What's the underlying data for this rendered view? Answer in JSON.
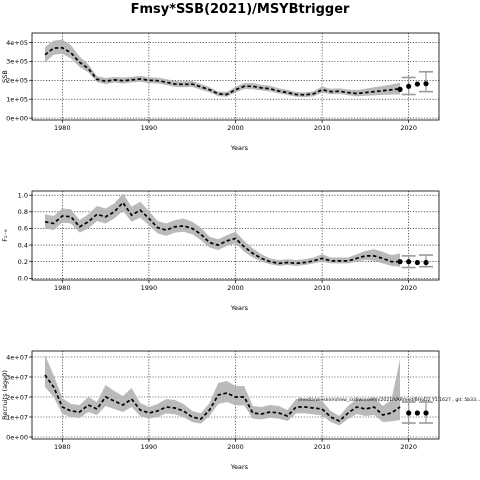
{
  "figure_title": "Fmsy*SSB(2021)/MSYBtrigger",
  "chart_data": [
    {
      "type": "line",
      "title": "",
      "xlabel": "Years",
      "ylabel": "SSB",
      "xlim": [
        1976.5,
        2023.5
      ],
      "ylim": [
        -10000,
        450000
      ],
      "xticks": [
        1980,
        1990,
        2000,
        2010,
        2020
      ],
      "xtick_labels": [
        "1980",
        "1990",
        "2000",
        "2010",
        "2020"
      ],
      "yticks": [
        0,
        100000,
        200000,
        300000,
        400000
      ],
      "ytick_labels": [
        "0e+00",
        "1e+05",
        "2e+05",
        "3e+05",
        "4e+05"
      ],
      "grid": true,
      "series": [
        {
          "x": [
            1978,
            1979,
            1980,
            1981,
            1982,
            1983,
            1984,
            1985,
            1986,
            1987,
            1988,
            1989,
            1990,
            1991,
            1992,
            1993,
            1994,
            1995,
            1996,
            1997,
            1998,
            1999,
            2000,
            2001,
            2002,
            2003,
            2004,
            2005,
            2006,
            2007,
            2008,
            2009,
            2010,
            2011,
            2012,
            2013,
            2014,
            2015,
            2016,
            2017,
            2018,
            2019
          ],
          "y": [
            335000,
            370000,
            372000,
            345000,
            295000,
            262000,
            205000,
            195000,
            202000,
            198000,
            202000,
            207000,
            200000,
            198000,
            190000,
            180000,
            178000,
            180000,
            165000,
            150000,
            128000,
            125000,
            150000,
            168000,
            168000,
            160000,
            155000,
            143000,
            135000,
            125000,
            123000,
            128000,
            150000,
            140000,
            142000,
            135000,
            130000,
            135000,
            140000,
            145000,
            150000,
            155000
          ],
          "lower": [
            295000,
            335000,
            340000,
            315000,
            270000,
            242000,
            190000,
            180000,
            188000,
            183000,
            188000,
            192000,
            185000,
            183000,
            175000,
            165000,
            163000,
            165000,
            150000,
            137000,
            116000,
            113000,
            136000,
            153000,
            153000,
            146000,
            141000,
            130000,
            122000,
            113000,
            111000,
            115000,
            135000,
            126000,
            128000,
            121000,
            115000,
            118000,
            120000,
            122000,
            124000,
            125000
          ],
          "upper": [
            375000,
            410000,
            415000,
            385000,
            325000,
            285000,
            222000,
            212000,
            218000,
            215000,
            218000,
            223000,
            216000,
            214000,
            206000,
            196000,
            194000,
            196000,
            180000,
            164000,
            141000,
            138000,
            166000,
            185000,
            185000,
            176000,
            171000,
            158000,
            149000,
            138000,
            136000,
            142000,
            167000,
            155000,
            158000,
            151000,
            148000,
            155000,
            163000,
            170000,
            178000,
            187000
          ]
        }
      ],
      "projection_points": [
        {
          "x": 2019,
          "y": 152000
        },
        {
          "x": 2020,
          "y": 168000
        },
        {
          "x": 2021,
          "y": 180000
        },
        {
          "x": 2022,
          "y": 182000
        }
      ],
      "projection_intervals": [
        {
          "x": 2020,
          "low": 125000,
          "high": 215000
        },
        {
          "x": 2022,
          "low": 140000,
          "high": 245000
        }
      ]
    },
    {
      "type": "line",
      "title": "",
      "xlabel": "Years",
      "ylabel": "F₂₋₆",
      "xlim": [
        1976.5,
        2023.5
      ],
      "ylim": [
        -0.02,
        1.05
      ],
      "xticks": [
        1980,
        1990,
        2000,
        2010,
        2020
      ],
      "xtick_labels": [
        "1980",
        "1990",
        "2000",
        "2010",
        "2020"
      ],
      "yticks": [
        0.0,
        0.2,
        0.4,
        0.6,
        0.8,
        1.0
      ],
      "ytick_labels": [
        "0.0",
        "0.2",
        "0.4",
        "0.6",
        "0.8",
        "1.0"
      ],
      "grid": true,
      "series": [
        {
          "x": [
            1978,
            1979,
            1980,
            1981,
            1982,
            1983,
            1984,
            1985,
            1986,
            1987,
            1988,
            1989,
            1990,
            1991,
            1992,
            1993,
            1994,
            1995,
            1996,
            1997,
            1998,
            1999,
            2000,
            2001,
            2002,
            2003,
            2004,
            2005,
            2006,
            2007,
            2008,
            2009,
            2010,
            2011,
            2012,
            2013,
            2014,
            2015,
            2016,
            2017,
            2018,
            2019
          ],
          "y": [
            0.68,
            0.66,
            0.75,
            0.74,
            0.62,
            0.68,
            0.77,
            0.74,
            0.8,
            0.91,
            0.76,
            0.82,
            0.72,
            0.61,
            0.58,
            0.62,
            0.63,
            0.6,
            0.53,
            0.43,
            0.4,
            0.45,
            0.48,
            0.38,
            0.3,
            0.24,
            0.2,
            0.18,
            0.19,
            0.18,
            0.19,
            0.21,
            0.24,
            0.21,
            0.21,
            0.21,
            0.24,
            0.27,
            0.27,
            0.24,
            0.2,
            0.2
          ],
          "lower": [
            0.6,
            0.58,
            0.67,
            0.66,
            0.55,
            0.6,
            0.69,
            0.66,
            0.72,
            0.81,
            0.68,
            0.73,
            0.64,
            0.54,
            0.51,
            0.55,
            0.56,
            0.53,
            0.46,
            0.37,
            0.34,
            0.39,
            0.42,
            0.32,
            0.25,
            0.2,
            0.17,
            0.15,
            0.16,
            0.15,
            0.16,
            0.18,
            0.2,
            0.18,
            0.18,
            0.18,
            0.2,
            0.22,
            0.21,
            0.18,
            0.15,
            0.14
          ],
          "upper": [
            0.77,
            0.75,
            0.84,
            0.83,
            0.7,
            0.77,
            0.87,
            0.84,
            0.9,
            1.02,
            0.86,
            0.92,
            0.81,
            0.69,
            0.66,
            0.7,
            0.72,
            0.68,
            0.61,
            0.5,
            0.47,
            0.52,
            0.56,
            0.45,
            0.36,
            0.29,
            0.24,
            0.22,
            0.23,
            0.22,
            0.23,
            0.25,
            0.29,
            0.25,
            0.25,
            0.25,
            0.29,
            0.33,
            0.35,
            0.32,
            0.28,
            0.3
          ]
        }
      ],
      "projection_points": [
        {
          "x": 2019,
          "y": 0.2
        },
        {
          "x": 2020,
          "y": 0.2
        },
        {
          "x": 2021,
          "y": 0.19
        },
        {
          "x": 2022,
          "y": 0.19
        }
      ],
      "projection_intervals": [
        {
          "x": 2020,
          "low": 0.13,
          "high": 0.27
        },
        {
          "x": 2022,
          "low": 0.14,
          "high": 0.28
        }
      ]
    },
    {
      "type": "line",
      "title": "",
      "xlabel": "Years",
      "ylabel": "Recruits (age0)",
      "xlim": [
        1976.5,
        2023.5
      ],
      "ylim": [
        -1000000,
        43000000
      ],
      "xticks": [
        1980,
        1990,
        2000,
        2010,
        2020
      ],
      "xtick_labels": [
        "1980",
        "1990",
        "2000",
        "2010",
        "2020"
      ],
      "yticks": [
        0,
        10000000,
        20000000,
        30000000,
        40000000
      ],
      "ytick_labels": [
        "0e+00",
        "1e+07",
        "2e+07",
        "3e+07",
        "4e+07"
      ],
      "grid": true,
      "series": [
        {
          "x": [
            1978,
            1979,
            1980,
            1981,
            1982,
            1983,
            1984,
            1985,
            1986,
            1987,
            1988,
            1989,
            1990,
            1991,
            1992,
            1993,
            1994,
            1995,
            1996,
            1997,
            1998,
            1999,
            2000,
            2001,
            2002,
            2003,
            2004,
            2005,
            2006,
            2007,
            2008,
            2009,
            2010,
            2011,
            2012,
            2013,
            2014,
            2015,
            2016,
            2017,
            2018,
            2019
          ],
          "y": [
            31000000,
            25000000,
            15000000,
            13000000,
            12500000,
            16000000,
            14000000,
            20000000,
            18000000,
            16000000,
            19000000,
            13500000,
            12000000,
            13000000,
            15000000,
            14500000,
            13000000,
            10000000,
            9000000,
            13500000,
            21000000,
            22000000,
            20000000,
            20000000,
            12000000,
            11500000,
            12500000,
            12000000,
            10500000,
            15000000,
            15000000,
            14500000,
            14000000,
            10000000,
            8000000,
            12000000,
            15000000,
            14000000,
            15000000,
            11000000,
            12000000,
            15000000
          ],
          "lower": [
            25000000,
            20000000,
            11500000,
            10000000,
            9500000,
            12500000,
            11000000,
            15500000,
            14000000,
            12500000,
            15000000,
            10500000,
            9200000,
            10000000,
            11800000,
            11300000,
            10000000,
            7500000,
            6700000,
            10500000,
            16500000,
            17500000,
            15800000,
            15800000,
            9200000,
            8800000,
            9600000,
            9200000,
            8000000,
            11800000,
            11800000,
            11300000,
            10800000,
            7500000,
            5800000,
            9000000,
            11500000,
            10500000,
            11000000,
            7500000,
            7800000,
            8500000
          ],
          "upper": [
            41000000,
            31000000,
            19500000,
            16500000,
            16000000,
            20000000,
            17500000,
            26000000,
            23000000,
            20500000,
            24500000,
            17000000,
            15000000,
            16500000,
            19000000,
            18500000,
            16500000,
            13000000,
            11800000,
            17000000,
            27000000,
            28000000,
            25500000,
            25500000,
            15500000,
            15000000,
            16000000,
            15500000,
            13500000,
            19000000,
            19000000,
            18500000,
            18000000,
            13000000,
            10500000,
            15500000,
            19000000,
            18500000,
            20000000,
            15500000,
            18500000,
            39000000
          ]
        }
      ],
      "projection_points": [
        {
          "x": 2020,
          "y": 12000000
        },
        {
          "x": 2021,
          "y": 12000000
        },
        {
          "x": 2022,
          "y": 12000000
        }
      ],
      "projection_intervals": [
        {
          "x": 2020,
          "low": 7000000,
          "high": 17500000
        },
        {
          "x": 2022,
          "low": 7000000,
          "high": 17500000
        }
      ],
      "annotation": "/media/wiesenm/new_ssd/wiesenm/2021/VARmod/BHoD2 Y1:1627 , git: 5b33..."
    }
  ]
}
